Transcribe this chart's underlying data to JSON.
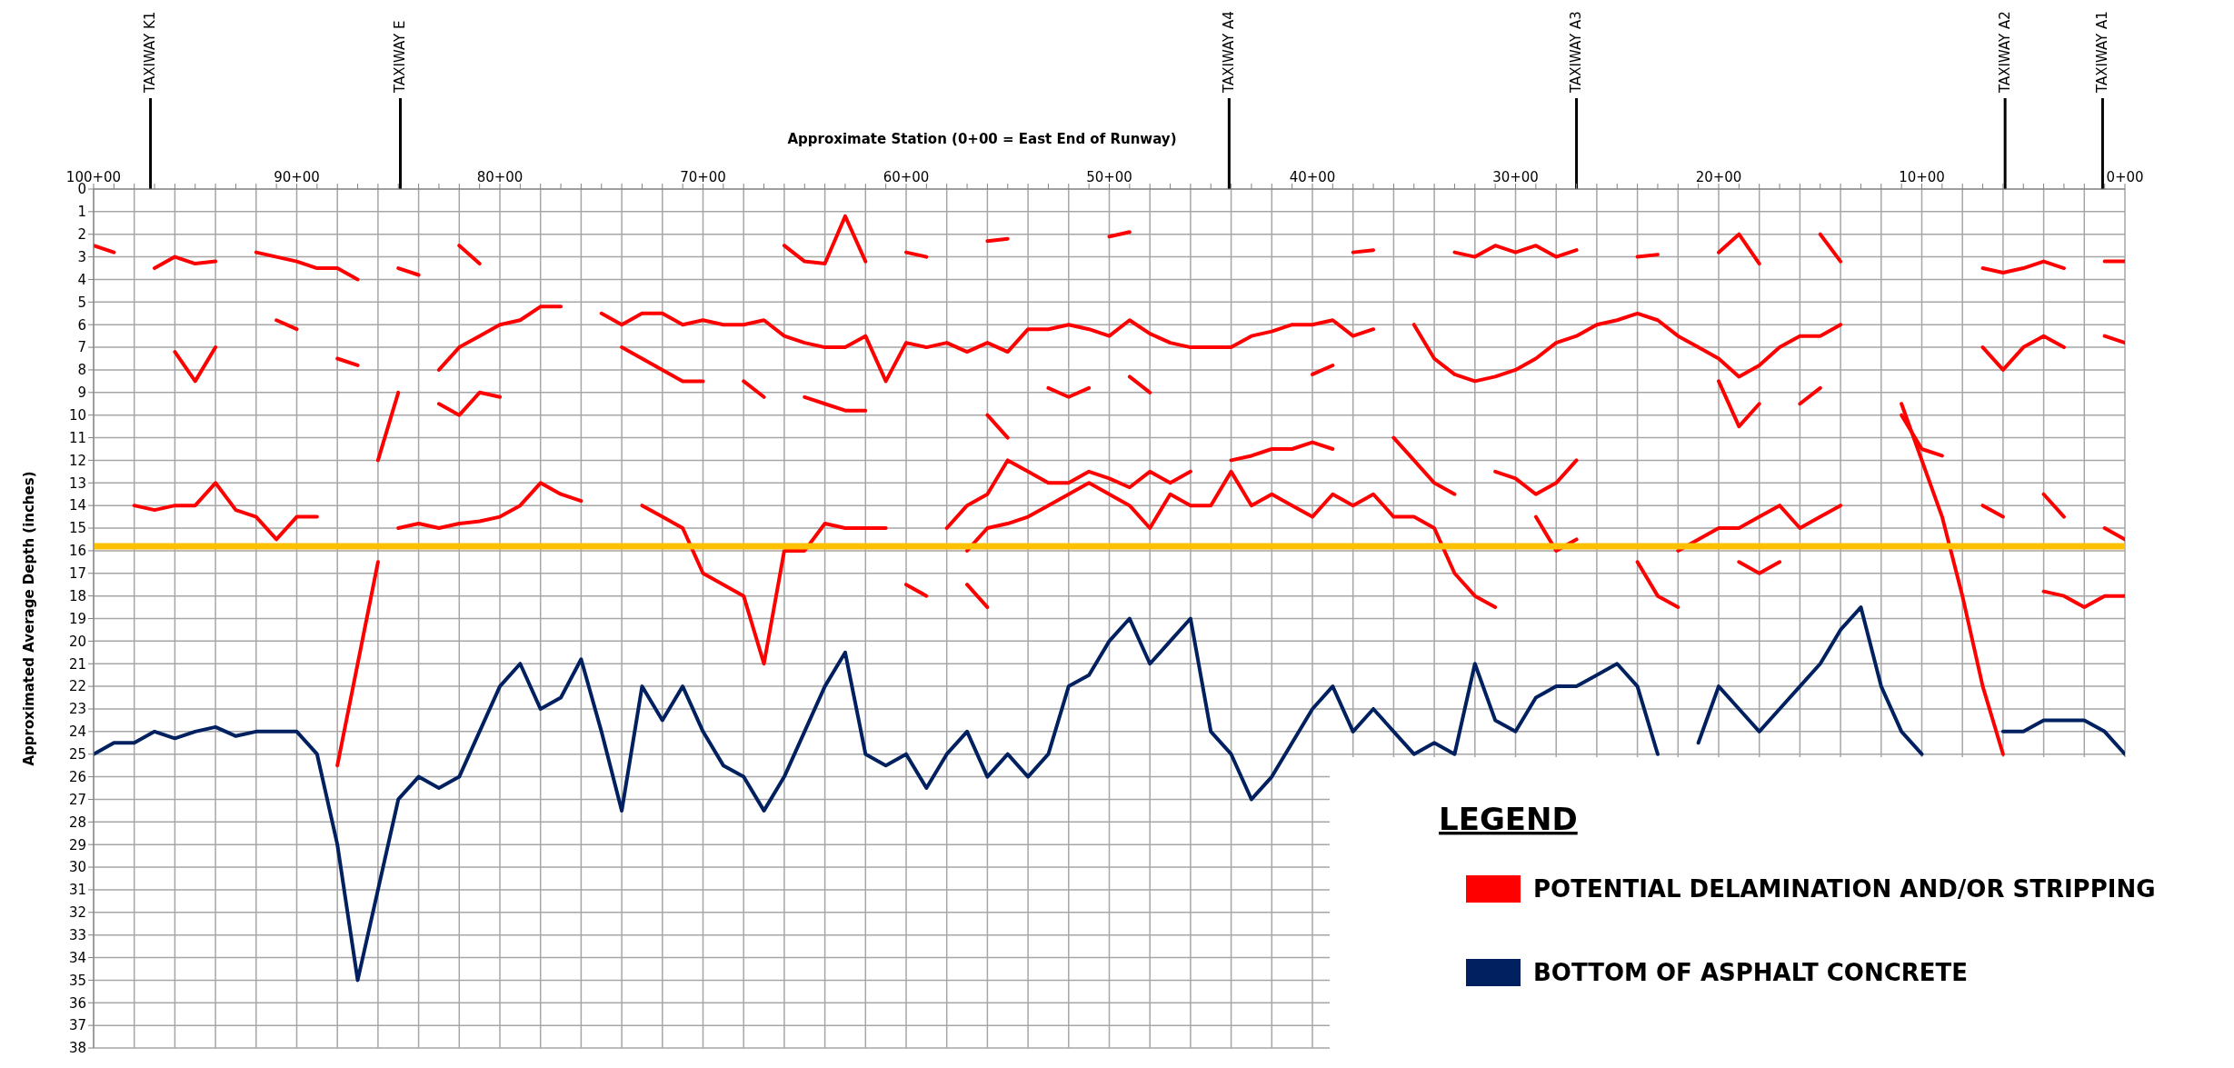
{
  "chart_data": {
    "type": "line",
    "xlabel": "Approximate Station (0+00 = East End of Runway)",
    "ylabel": "Approximated Average Depth (inches)",
    "legend_title": "LEGEND",
    "legend": "bottom right",
    "grid": true,
    "marker": "none",
    "line_style": "solid",
    "categories": [
      "100+00",
      null,
      null,
      null,
      null,
      null,
      null,
      null,
      null,
      null,
      "90+00",
      null,
      null,
      null,
      null,
      null,
      null,
      null,
      null,
      null,
      "80+00",
      null,
      null,
      null,
      null,
      null,
      null,
      null,
      null,
      null,
      "70+00",
      null,
      null,
      null,
      null,
      null,
      null,
      null,
      null,
      null,
      "60+00",
      null,
      null,
      null,
      null,
      null,
      null,
      null,
      null,
      null,
      "50+00",
      null,
      null,
      null,
      null,
      null,
      null,
      null,
      null,
      null,
      "40+00",
      null,
      null,
      null,
      null,
      null,
      null,
      null,
      null,
      null,
      "30+00",
      null,
      null,
      null,
      null,
      null,
      null,
      null,
      null,
      null,
      "20+00",
      null,
      null,
      null,
      null,
      null,
      null,
      null,
      null,
      null,
      "10+00",
      null,
      null,
      null,
      null,
      null,
      null,
      null,
      null,
      null,
      "0+00"
    ],
    "ylim": [
      38,
      0
    ],
    "yticks": [
      0,
      1,
      2,
      3,
      4,
      5,
      6,
      7,
      8,
      9,
      10,
      11,
      12,
      13,
      14,
      15,
      16,
      17,
      18,
      19,
      20,
      21,
      22,
      23,
      24,
      25,
      26,
      27,
      28,
      29,
      30,
      31,
      32,
      33,
      34,
      35,
      36,
      37,
      38
    ],
    "annotations": [
      "TAXIWAY K1",
      "TAXIWAY E",
      "TAXIWAY A4",
      "TAXIWAY A3",
      "TAXIWAY A2",
      "TAXIWAY A1"
    ],
    "ref_lines": [
      {
        "axis": "y",
        "value": 15.8,
        "color": "#ffc000"
      }
    ],
    "series": [
      {
        "name": "POTENTIAL DELAMINATION AND/OR STRIPPING",
        "color": "#ff0000",
        "values": [
          2.5,
          2.8,
          null,
          3.5,
          3.0,
          3.3,
          3.2,
          null,
          2.8,
          3.0,
          3.2,
          3.5,
          3.5,
          4.0,
          null,
          3.5,
          3.8,
          null,
          2.5,
          3.3,
          null,
          null,
          null,
          null,
          null,
          null,
          null,
          null,
          null,
          null,
          null,
          null,
          null,
          null,
          2.5,
          3.2,
          3.3,
          1.2,
          3.2,
          null,
          2.8,
          3.0,
          null,
          null,
          2.3,
          2.2,
          null,
          null,
          null,
          null,
          2.1,
          1.9,
          null,
          null,
          null,
          null,
          null,
          null,
          null,
          null,
          null,
          null,
          2.8,
          2.7,
          null,
          null,
          null,
          2.8,
          3.0,
          2.5,
          2.8,
          2.5,
          3.0,
          2.7,
          null,
          null,
          3.0,
          2.9,
          null,
          null,
          2.8,
          2.0,
          3.3,
          null,
          null,
          2.0,
          3.2,
          null,
          null,
          null,
          null,
          null,
          null,
          3.5,
          3.7,
          3.5,
          3.2,
          3.5,
          null,
          3.2,
          3.2
        ]
      },
      {
        "color": "#ff0000",
        "values": [
          null,
          null,
          null,
          null,
          7.2,
          8.5,
          7.0,
          null,
          null,
          5.8,
          6.2,
          null,
          7.5,
          7.8,
          null,
          null,
          null,
          8.0,
          7.0,
          6.5,
          6.0,
          5.8,
          5.2,
          5.2,
          null,
          5.5,
          6.0,
          5.5,
          5.5,
          6.0,
          5.8,
          6.0,
          6.0,
          5.8,
          6.5,
          6.8,
          7.0,
          7.0,
          6.5,
          8.5,
          6.8,
          7.0,
          6.8,
          7.2,
          6.8,
          7.2,
          6.2,
          6.2,
          6.0,
          6.2,
          6.5,
          5.8,
          6.4,
          6.8,
          7.0,
          7.0,
          7.0,
          6.5,
          6.3,
          6.0,
          6.0,
          5.8,
          6.5,
          6.2,
          null,
          6.0,
          7.5,
          8.2,
          8.5,
          8.3,
          8.0,
          7.5,
          6.8,
          6.5,
          6.0,
          5.8,
          5.5,
          5.8,
          6.5,
          7.0,
          7.5,
          8.3,
          7.8,
          7.0,
          6.5,
          6.5,
          6.0,
          null,
          null,
          null,
          null,
          null,
          null,
          7.0,
          8.0,
          7.0,
          6.5,
          7.0,
          null,
          6.5,
          6.8
        ]
      },
      {
        "color": "#ff0000",
        "values": [
          null,
          null,
          null,
          null,
          null,
          null,
          null,
          null,
          null,
          null,
          null,
          null,
          null,
          null,
          null,
          null,
          null,
          9.5,
          10.0,
          9.0,
          9.2,
          null,
          null,
          null,
          null,
          null,
          7.0,
          7.5,
          8.0,
          8.5,
          8.5,
          null,
          8.5,
          9.2,
          null,
          9.2,
          9.5,
          9.8,
          9.8,
          null,
          null,
          null,
          null,
          null,
          10.0,
          11.0,
          null,
          8.8,
          9.2,
          8.8,
          null,
          8.3,
          9.0,
          null,
          null,
          null,
          null,
          null,
          null,
          null,
          8.2,
          7.8,
          null,
          null,
          null,
          null,
          null,
          null,
          null,
          null,
          null,
          null,
          null,
          null,
          null,
          null,
          null,
          null,
          null,
          null,
          8.5,
          10.5,
          9.5,
          null,
          9.5,
          8.8,
          null,
          null,
          null,
          null,
          null,
          null,
          null,
          null,
          null,
          null,
          null,
          null,
          null,
          null,
          null
        ]
      },
      {
        "color": "#ff0000",
        "values": [
          null,
          null,
          null,
          null,
          null,
          null,
          null,
          null,
          null,
          null,
          null,
          null,
          null,
          null,
          12.0,
          9.0,
          null,
          null,
          null,
          null,
          null,
          null,
          null,
          null,
          null,
          null,
          null,
          null,
          null,
          null,
          null,
          null,
          null,
          null,
          null,
          null,
          null,
          null,
          null,
          null,
          null,
          null,
          15.0,
          14.0,
          13.5,
          12.0,
          12.5,
          13.0,
          13.0,
          12.5,
          12.8,
          13.2,
          12.5,
          13.0,
          12.5,
          null,
          12.0,
          11.8,
          11.5,
          11.5,
          11.2,
          11.5,
          null,
          null,
          11.0,
          12.0,
          13.0,
          13.5,
          null,
          12.5,
          12.8,
          13.5,
          13.0,
          12.0,
          null,
          null,
          null,
          null,
          null,
          null,
          null,
          null,
          null,
          null,
          null,
          null,
          null,
          null,
          null,
          10.0,
          11.5,
          11.8,
          null,
          null,
          null,
          null,
          null,
          null,
          null,
          null,
          null
        ]
      },
      {
        "color": "#ff0000",
        "values": [
          null,
          null,
          null,
          null,
          null,
          null,
          null,
          null,
          null,
          null,
          null,
          null,
          25.5,
          21.0,
          16.5,
          null,
          null,
          null,
          null,
          null,
          null,
          null,
          null,
          null,
          null,
          null,
          null,
          null,
          null,
          null,
          null,
          null,
          null,
          null,
          null,
          null,
          null,
          null,
          null,
          null,
          null,
          null,
          null,
          null,
          null,
          null,
          null,
          null,
          null,
          null,
          null,
          null,
          null,
          null,
          null,
          null,
          null,
          null,
          null,
          null,
          null,
          null,
          null,
          null,
          null,
          null,
          null,
          null,
          null,
          null,
          null,
          null,
          null,
          null,
          null,
          null,
          null,
          null,
          null,
          null,
          null,
          null,
          null,
          null,
          null,
          null,
          null,
          null,
          null,
          9.5,
          12.0,
          14.5,
          18.0,
          22.0,
          25.0,
          null,
          null,
          null,
          null,
          null,
          null
        ]
      },
      {
        "color": "#ff0000",
        "values": [
          null,
          null,
          14.0,
          14.2,
          14.0,
          14.0,
          13.0,
          14.2,
          14.5,
          15.5,
          14.5,
          14.5,
          null,
          null,
          null,
          15.0,
          14.8,
          15.0,
          14.8,
          14.7,
          14.5,
          14.0,
          13.0,
          13.5,
          13.8,
          null,
          null,
          14.0,
          14.5,
          15.0,
          17.0,
          17.5,
          18.0,
          21.0,
          16.0,
          16.0,
          14.8,
          15.0,
          15.0,
          15.0,
          null,
          null,
          null,
          16.0,
          15.0,
          14.8,
          14.5,
          14.0,
          13.5,
          13.0,
          13.5,
          14.0,
          15.0,
          13.5,
          14.0,
          14.0,
          12.5,
          14.0,
          13.5,
          14.0,
          14.5,
          13.5,
          14.0,
          13.5,
          14.5,
          14.5,
          15.0,
          17.0,
          18.0,
          18.5,
          null,
          14.5,
          16.0,
          15.5,
          null,
          null,
          null,
          null,
          16.0,
          15.5,
          15.0,
          15.0,
          14.5,
          14.0,
          15.0,
          14.5,
          14.0,
          null,
          null,
          null,
          null,
          null,
          null,
          14.0,
          14.5,
          null,
          13.5,
          14.5,
          null,
          15.0,
          15.5
        ]
      },
      {
        "color": "#ff0000",
        "values": [
          null,
          null,
          null,
          null,
          null,
          null,
          null,
          null,
          null,
          null,
          null,
          null,
          null,
          null,
          null,
          null,
          null,
          null,
          null,
          null,
          null,
          null,
          null,
          null,
          null,
          null,
          null,
          null,
          null,
          null,
          null,
          null,
          null,
          null,
          null,
          null,
          null,
          null,
          null,
          null,
          17.5,
          18.0,
          null,
          17.5,
          18.5,
          null,
          null,
          null,
          null,
          null,
          null,
          null,
          null,
          null,
          null,
          null,
          null,
          null,
          null,
          null,
          null,
          null,
          null,
          null,
          null,
          null,
          null,
          null,
          null,
          null,
          null,
          null,
          null,
          null,
          null,
          null,
          16.5,
          18.0,
          18.5,
          null,
          null,
          16.5,
          17.0,
          16.5,
          null,
          null,
          null,
          null,
          null,
          null,
          null,
          null,
          null,
          null,
          null,
          null,
          17.8,
          18.0,
          18.5,
          18.0,
          18.0
        ]
      },
      {
        "name": "BOTTOM OF ASPHALT CONCRETE",
        "color": "#002060",
        "values": [
          25,
          24.5,
          24.5,
          24,
          24.3,
          24,
          23.8,
          24.2,
          24,
          24,
          24,
          25,
          29,
          35,
          31,
          27,
          26,
          26.5,
          26,
          24,
          22,
          21,
          23,
          22.5,
          20.8,
          24,
          27.5,
          22,
          23.5,
          22,
          24,
          25.5,
          26,
          27.5,
          26,
          24,
          22,
          20.5,
          25,
          25.5,
          25,
          26.5,
          25,
          24,
          26,
          25,
          26,
          25,
          22,
          21.5,
          20,
          19,
          21,
          20,
          19,
          24,
          25,
          27,
          26,
          24.5,
          23,
          22,
          24,
          23,
          24,
          25,
          24.5,
          25,
          21,
          23.5,
          24,
          22.5,
          22,
          22,
          21.5,
          21,
          22,
          25,
          null,
          24.5,
          22,
          23,
          24,
          23,
          22,
          21,
          19.5,
          18.5,
          22,
          24,
          25,
          null,
          null,
          null,
          24,
          24,
          23.5,
          23.5,
          23.5,
          24,
          25
        ]
      }
    ]
  }
}
